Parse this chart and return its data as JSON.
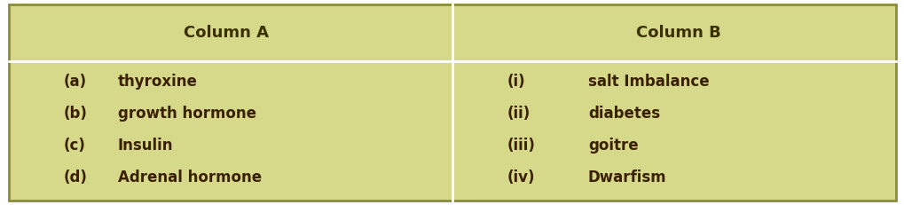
{
  "bg_color": "#d6d98a",
  "border_color": "#8a8c3c",
  "divider_color": "#ffffff",
  "header_text_color": "#3b3000",
  "body_text_color": "#3b2000",
  "col_a_header": "Column A",
  "col_b_header": "Column B",
  "col_a_items": [
    {
      "label": "(a)",
      "text": "thyroxine"
    },
    {
      "label": "(b)",
      "text": "growth hormone"
    },
    {
      "label": "(c)",
      "text": "Insulin"
    },
    {
      "label": "(d)",
      "text": "Adrenal hormone"
    }
  ],
  "col_b_items": [
    {
      "label": "(i)",
      "text": "salt Imbalance"
    },
    {
      "label": "(ii)",
      "text": "diabetes"
    },
    {
      "label": "(iii)",
      "text": "goitre"
    },
    {
      "label": "(iv)",
      "text": "Dwarfism"
    }
  ],
  "header_fontsize": 13,
  "body_fontsize": 12,
  "fig_width": 10.2,
  "fig_height": 2.31
}
